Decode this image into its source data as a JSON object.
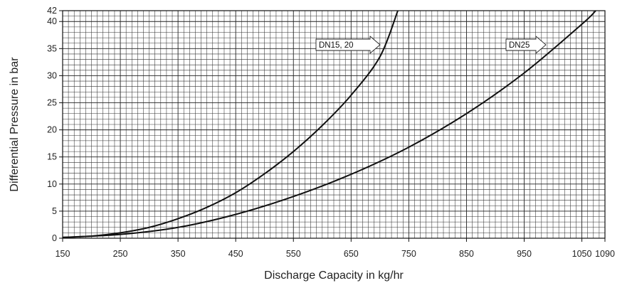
{
  "chart_data": {
    "type": "line",
    "title": "",
    "xlabel": "Discharge Capacity in kg/hr",
    "ylabel": "Differential Pressure in bar",
    "xlim": [
      150,
      1090
    ],
    "ylim": [
      0,
      42
    ],
    "x_ticks": [
      150,
      250,
      350,
      450,
      550,
      650,
      750,
      850,
      950,
      1050,
      1090
    ],
    "y_ticks": [
      0,
      5,
      10,
      15,
      20,
      25,
      30,
      35,
      40,
      42
    ],
    "grid": true,
    "series": [
      {
        "name": "DN15, 20",
        "x": [
          150,
          200,
          250,
          300,
          350,
          400,
          450,
          500,
          550,
          600,
          650,
          700,
          731
        ],
        "y": [
          0.15,
          0.4,
          1.0,
          2.0,
          3.6,
          5.7,
          8.4,
          11.9,
          16.0,
          20.8,
          26.4,
          33.5,
          42
        ]
      },
      {
        "name": "DN25",
        "x": [
          150,
          250,
          350,
          450,
          550,
          650,
          750,
          850,
          950,
          1050,
          1074
        ],
        "y": [
          0.15,
          0.7,
          2.0,
          4.4,
          7.7,
          11.8,
          16.8,
          23.0,
          30.5,
          39.5,
          42
        ]
      }
    ]
  }
}
